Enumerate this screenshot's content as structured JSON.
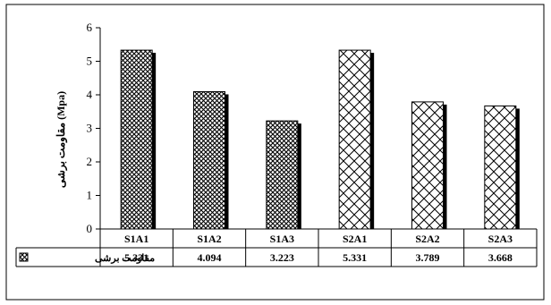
{
  "chart_data": {
    "type": "bar",
    "categories": [
      "S1A1",
      "S1A2",
      "S1A3",
      "S2A1",
      "S2A2",
      "S2A3"
    ],
    "series": [
      {
        "name": "مقاومت برشی",
        "values": [
          5.331,
          4.094,
          3.223,
          5.331,
          3.789,
          3.668
        ]
      }
    ],
    "value_labels": [
      "5.331",
      "4.094",
      "3.223",
      "5.331",
      "3.789",
      "3.668"
    ],
    "ylabel": "مقاومت برشی (Mpa)",
    "ylim": [
      0,
      6
    ],
    "yticks": [
      "0",
      "1",
      "2",
      "3",
      "4",
      "5",
      "6"
    ],
    "grid": false,
    "legend": "data-table-left",
    "fill_patterns": [
      "dense-crosshatch",
      "dense-crosshatch",
      "dense-crosshatch",
      "open-diagonal-lattice",
      "open-diagonal-lattice",
      "open-diagonal-lattice"
    ],
    "colors": {
      "bar_stroke": "#000000",
      "bar_fill": "#ffffff",
      "bar_shadow": "#000000"
    }
  }
}
